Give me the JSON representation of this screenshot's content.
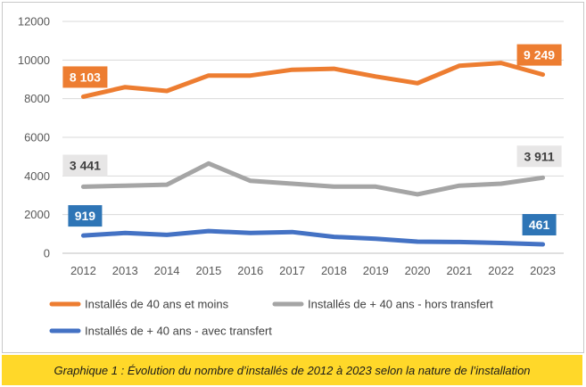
{
  "caption": "Graphique 1 : Évolution du nombre d’installés de 2012 à 2023 selon la nature de l’installation",
  "chart_data": {
    "type": "line",
    "x": [
      "2012",
      "2013",
      "2014",
      "2015",
      "2016",
      "2017",
      "2018",
      "2019",
      "2020",
      "2021",
      "2022",
      "2023"
    ],
    "ylim": [
      0,
      12000
    ],
    "yticks": [
      0,
      2000,
      4000,
      6000,
      8000,
      10000,
      12000
    ],
    "ytick_labels": [
      "0",
      "2000",
      "4000",
      "6000",
      "8000",
      "10000",
      "12000"
    ],
    "grid": true,
    "legend_position": "bottom",
    "series": [
      {
        "name": "Installés de 40 ans et moins",
        "color": "#ed7d31",
        "values": [
          8103,
          8600,
          8400,
          9200,
          9200,
          9500,
          9550,
          9150,
          8800,
          9700,
          9850,
          9249
        ],
        "labels": [
          {
            "index": 0,
            "text": "8 103"
          },
          {
            "index": 11,
            "text": "9 249"
          }
        ],
        "label_bg": "#ed7d31",
        "label_fg": "#ffffff"
      },
      {
        "name": "Installés de + 40 ans - hors transfert",
        "color": "#a5a5a5",
        "values": [
          3441,
          3500,
          3550,
          4650,
          3750,
          3600,
          3450,
          3450,
          3050,
          3500,
          3600,
          3911
        ],
        "labels": [
          {
            "index": 0,
            "text": "3 441"
          },
          {
            "index": 11,
            "text": "3 911"
          }
        ],
        "label_bg": "#e7e6e6",
        "label_fg": "#404040"
      },
      {
        "name": "Installés de + 40 ans - avec transfert",
        "color": "#4472c4",
        "values": [
          919,
          1050,
          950,
          1150,
          1050,
          1100,
          850,
          750,
          600,
          580,
          530,
          461
        ],
        "labels": [
          {
            "index": 0,
            "text": "919"
          },
          {
            "index": 11,
            "text": "461"
          }
        ],
        "label_bg": "#2e75b6",
        "label_fg": "#ffffff"
      }
    ]
  }
}
